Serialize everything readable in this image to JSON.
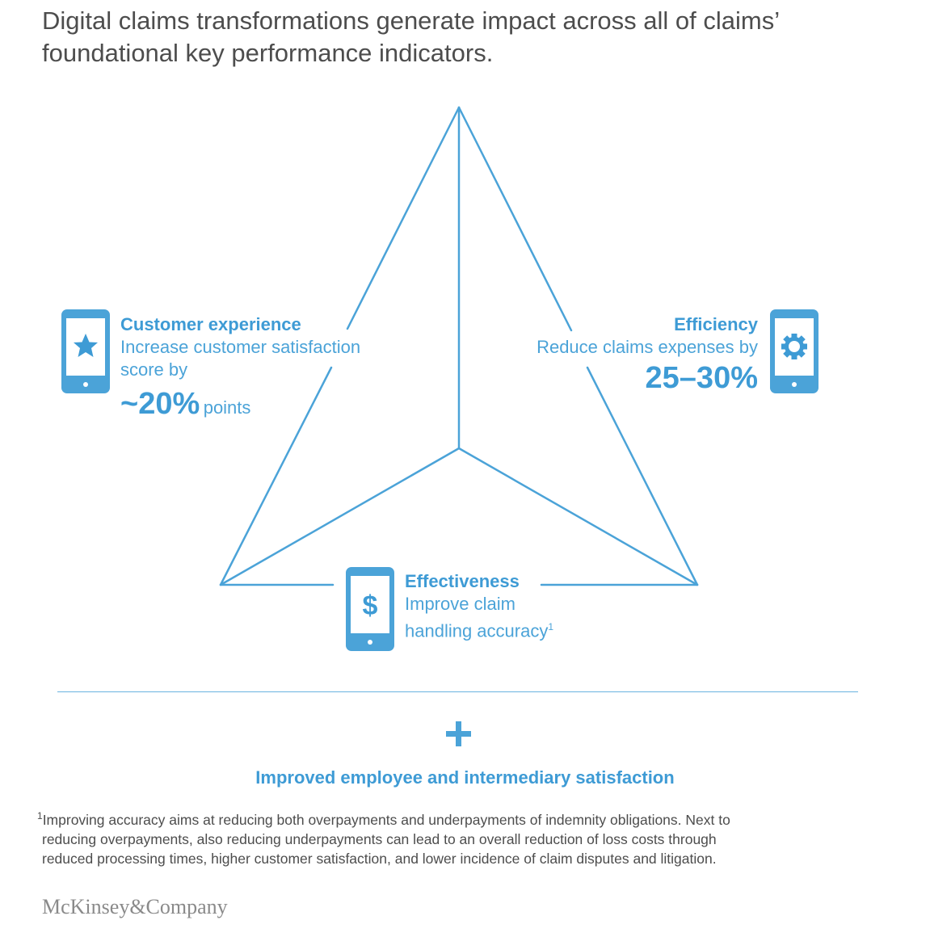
{
  "title": "Digital claims transformations generate impact across all of claims’ foundational key performance indicators.",
  "colors": {
    "accent": "#3e9bd5",
    "line": "#4ba3d8",
    "text": "#4d4d4d"
  },
  "customer": {
    "icon": "star-icon",
    "heading": "Customer experience",
    "line1": "Increase customer satisfaction",
    "line2": "score by",
    "value": "~20%",
    "unit": "points"
  },
  "efficiency": {
    "icon": "gear-icon",
    "heading": "Efficiency",
    "line1": "Reduce claims expenses by",
    "value": "25–30%"
  },
  "effectiveness": {
    "icon": "dollar-icon",
    "heading": "Effectiveness",
    "line1": "Improve claim",
    "line2": "handling accuracy",
    "footnote_mark": "1"
  },
  "plus_symbol": "plus-icon",
  "bottom_text": "Improved employee and intermediary satisfaction",
  "footnote": {
    "mark": "1",
    "line1": "Improving accuracy aims at reducing both overpayments and underpayments of indemnity obligations. Next to",
    "line2": "reducing overpayments, also reducing underpayments can lead to an overall reduction of loss costs through",
    "line3": "reduced processing times, higher customer satisfaction, and lower incidence of claim disputes and litigation."
  },
  "logo": "McKinsey&Company"
}
